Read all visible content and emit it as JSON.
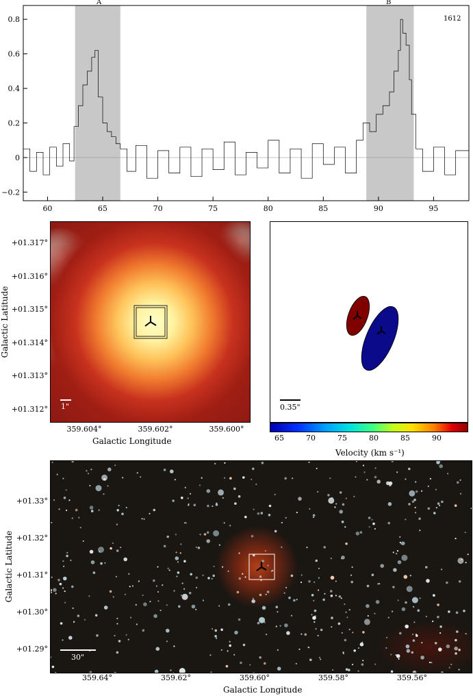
{
  "chart_data": [
    {
      "type": "line",
      "annotations": {
        "label": "1612",
        "band_a": "A",
        "band_b": "B"
      },
      "xlim": [
        57.8,
        98.2
      ],
      "ylim": [
        -0.25,
        0.88
      ],
      "x_ticks": [
        60,
        65,
        70,
        75,
        80,
        85,
        90,
        95
      ],
      "y_ticks": [
        -0.2,
        0,
        0.2,
        0.4,
        0.6,
        0.8
      ],
      "y_tick_labels": [
        "−0.2",
        "0",
        "0.2",
        "0.4",
        "0.6",
        "0.8"
      ],
      "shaded_ranges": [
        [
          62.5,
          66.6
        ],
        [
          88.9,
          93.2
        ]
      ],
      "series": [
        {
          "x": [
            57.8,
            58.4,
            59.0,
            59.6,
            60.2,
            60.8,
            61.4,
            62.0,
            62.4,
            62.8,
            63.2,
            63.6,
            64.0,
            64.3,
            64.6,
            65.0,
            65.4,
            65.8,
            66.2,
            66.6,
            67.2,
            68.0,
            69.0,
            70.0,
            71.0,
            72.0,
            73.0,
            74.0,
            75.0,
            76.0,
            77.0,
            78.0,
            79.0,
            80.0,
            81.0,
            82.0,
            83.0,
            84.0,
            85.0,
            86.0,
            87.0,
            88.0,
            88.6,
            89.2,
            89.8,
            90.4,
            91.0,
            91.4,
            91.8,
            92.0,
            92.2,
            92.5,
            92.8,
            93.0,
            93.4,
            94.0,
            95.0,
            96.0,
            97.0,
            98.2
          ],
          "y": [
            0.05,
            -0.08,
            0.03,
            -0.1,
            0.06,
            -0.05,
            0.08,
            -0.02,
            0.18,
            0.3,
            0.42,
            0.5,
            0.58,
            0.62,
            0.35,
            0.2,
            0.15,
            0.12,
            0.08,
            0.05,
            -0.08,
            0.07,
            -0.12,
            0.04,
            -0.09,
            0.06,
            -0.11,
            0.05,
            -0.07,
            0.09,
            -0.1,
            0.03,
            -0.06,
            0.1,
            -0.09,
            0.05,
            -0.12,
            0.08,
            -0.04,
            0.06,
            -0.09,
            0.1,
            0.2,
            0.15,
            0.25,
            0.3,
            0.38,
            0.5,
            0.62,
            0.8,
            0.72,
            0.65,
            0.45,
            0.25,
            0.05,
            -0.08,
            0.06,
            -0.1,
            0.04,
            -0.06
          ]
        }
      ]
    },
    {
      "type": "heatmap",
      "xlabel": "Galactic Longitude",
      "ylabel": "Galactic Latitude",
      "x_tick_labels": [
        "359.604°",
        "359.602°",
        "359.600°"
      ],
      "y_tick_labels": [
        "+01.317°",
        "+01.316°",
        "+01.315°",
        "+01.314°",
        "+01.313°",
        "+01.312°"
      ],
      "scale_bar": "1\""
    },
    {
      "type": "scatter",
      "scale_bar": "0.35\"",
      "colorbar_label": "Velocity (km s⁻¹)",
      "colorbar_ticks": [
        "65",
        "70",
        "75",
        "80",
        "85",
        "90"
      ],
      "colorbar_range": [
        63,
        93
      ],
      "components": [
        {
          "velocity": 64.5,
          "color": "#0a0a8a"
        },
        {
          "velocity": 92.0,
          "color": "#800000"
        }
      ]
    },
    {
      "type": "heatmap",
      "xlabel": "Galactic Longitude",
      "ylabel": "Galactic Latitude",
      "x_tick_labels": [
        "359.64°",
        "359.62°",
        "359.60°",
        "359.58°",
        "359.56°"
      ],
      "y_tick_labels": [
        "+01.33°",
        "+01.32°",
        "+01.31°",
        "+01.30°",
        "+01.29°"
      ],
      "scale_bar": "30\""
    }
  ]
}
